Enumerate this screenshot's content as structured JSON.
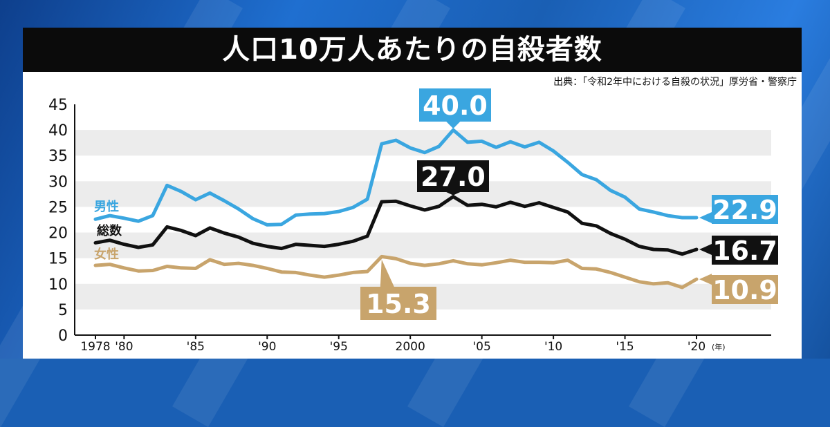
{
  "header": {
    "title": "人口10万人あたりの自殺者数",
    "source": "出典：「令和2年中における自殺の状況」厚労省・警察庁"
  },
  "chart_data": {
    "type": "line",
    "x": [
      1978,
      1979,
      1980,
      1981,
      1982,
      1983,
      1984,
      1985,
      1986,
      1987,
      1988,
      1989,
      1990,
      1991,
      1992,
      1993,
      1994,
      1995,
      1996,
      1997,
      1998,
      1999,
      2000,
      2001,
      2002,
      2003,
      2004,
      2005,
      2006,
      2007,
      2008,
      2009,
      2010,
      2011,
      2012,
      2013,
      2014,
      2015,
      2016,
      2017,
      2018,
      2019,
      2020
    ],
    "x_tick_labels": [
      {
        "x": 1978,
        "label": "1978"
      },
      {
        "x": 1980,
        "label": "'80"
      },
      {
        "x": 1985,
        "label": "'85"
      },
      {
        "x": 1990,
        "label": "'90"
      },
      {
        "x": 1995,
        "label": "'95"
      },
      {
        "x": 2000,
        "label": "2000"
      },
      {
        "x": 2005,
        "label": "'05"
      },
      {
        "x": 2010,
        "label": "'10"
      },
      {
        "x": 2015,
        "label": "'15"
      },
      {
        "x": 2020,
        "label": "'20"
      }
    ],
    "x_unit": "(年)",
    "ylim": [
      0,
      45
    ],
    "yticks": [
      0,
      5,
      10,
      15,
      20,
      25,
      30,
      35,
      40,
      45
    ],
    "grid": true,
    "series": [
      {
        "name": "男性",
        "color": "#3aa6e0",
        "values": [
          22.6,
          23.3,
          22.8,
          22.2,
          23.3,
          29.2,
          28.0,
          26.4,
          27.7,
          26.2,
          24.6,
          22.7,
          21.5,
          21.6,
          23.4,
          23.6,
          23.7,
          24.1,
          24.9,
          26.5,
          37.3,
          38.0,
          36.5,
          35.6,
          36.8,
          40.0,
          37.6,
          37.8,
          36.6,
          37.7,
          36.7,
          37.6,
          35.9,
          33.7,
          31.3,
          30.3,
          28.2,
          26.9,
          24.6,
          24.0,
          23.3,
          22.9,
          22.9
        ]
      },
      {
        "name": "総数",
        "color": "#111111",
        "values": [
          18.0,
          18.5,
          17.7,
          17.1,
          17.6,
          21.1,
          20.4,
          19.4,
          20.9,
          19.9,
          19.1,
          17.9,
          17.3,
          16.9,
          17.7,
          17.5,
          17.3,
          17.7,
          18.3,
          19.3,
          26.0,
          26.1,
          25.2,
          24.4,
          25.1,
          27.0,
          25.3,
          25.5,
          25.0,
          25.9,
          25.1,
          25.8,
          24.9,
          24.0,
          21.8,
          21.3,
          19.8,
          18.7,
          17.3,
          16.7,
          16.6,
          15.8,
          16.7
        ]
      },
      {
        "name": "女性",
        "color": "#c8a46c",
        "values": [
          13.6,
          13.8,
          13.1,
          12.5,
          12.6,
          13.4,
          13.1,
          13.0,
          14.7,
          13.8,
          14.0,
          13.6,
          13.0,
          12.3,
          12.2,
          11.7,
          11.3,
          11.7,
          12.2,
          12.4,
          15.3,
          14.9,
          14.0,
          13.6,
          13.9,
          14.5,
          13.9,
          13.7,
          14.1,
          14.6,
          14.2,
          14.2,
          14.1,
          14.6,
          13.0,
          12.9,
          12.2,
          11.3,
          10.4,
          10.0,
          10.2,
          9.3,
          10.9
        ]
      }
    ],
    "callouts": [
      {
        "text": "40.0",
        "series": "男性"
      },
      {
        "text": "27.0",
        "series": "総数"
      },
      {
        "text": "15.3",
        "series": "女性"
      },
      {
        "text": "22.9",
        "series": "男性"
      },
      {
        "text": "16.7",
        "series": "総数"
      },
      {
        "text": "10.9",
        "series": "女性"
      }
    ]
  }
}
